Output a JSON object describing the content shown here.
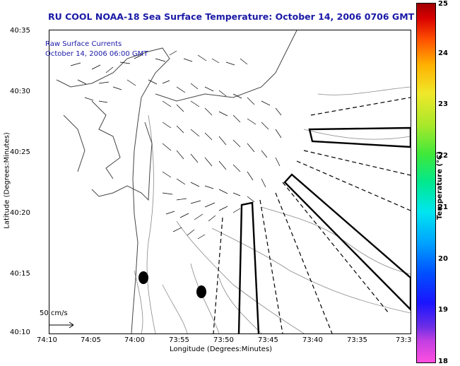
{
  "title": "RU COOL  NOAA-18  Sea Surface Temperature:  October 14, 2006 0706 GMT",
  "legend": {
    "line1": "Raw Surface Currents",
    "line2": "October 14, 2006 06:00 GMT"
  },
  "scale_label": "50 cm/s",
  "x_axis": {
    "title": "Longitude (Degrees:Minutes)",
    "ticks": [
      "74:10",
      "74:05",
      "74:00",
      "73:55",
      "73:50",
      "73:45",
      "73:40",
      "73:35",
      "73:3"
    ]
  },
  "y_axis": {
    "title": "Latitude (Degrees:Minutes)",
    "ticks": [
      "40:35",
      "40:30",
      "40:25",
      "40:20",
      "40:15",
      "40:10"
    ]
  },
  "colorbar": {
    "title": "Temperature (°C)",
    "ticks": [
      "25",
      "24",
      "23",
      "22",
      "21",
      "20",
      "19",
      "18"
    ]
  },
  "colors": {
    "title_text": "#1a1aa6",
    "coast": "#555555",
    "contour": "#888888"
  }
}
